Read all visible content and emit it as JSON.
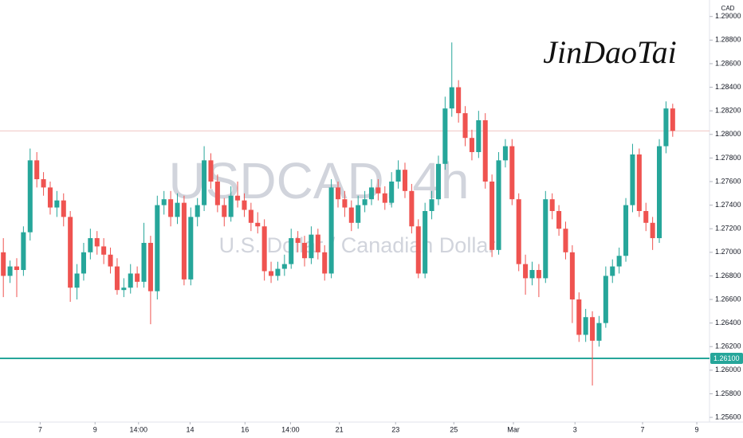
{
  "chart_data": {
    "type": "candlestick",
    "watermark": "USDCAD, 4h",
    "watermark_subtitle": "U.S. Dollar / Canadian Dollar",
    "signature": "JinDaoTai",
    "currency": "CAD",
    "up_color": "#26a69a",
    "down_color": "#ef5350",
    "grid": false,
    "xlim": [
      -0.5,
      105.5
    ],
    "ylim": [
      1.2556,
      1.2914
    ],
    "yticks": [
      {
        "value": 1.256,
        "label": "1.25600"
      },
      {
        "value": 1.258,
        "label": "1.25800"
      },
      {
        "value": 1.26,
        "label": "1.26000"
      },
      {
        "value": 1.262,
        "label": "1.26200"
      },
      {
        "value": 1.264,
        "label": "1.26400"
      },
      {
        "value": 1.266,
        "label": "1.26600"
      },
      {
        "value": 1.268,
        "label": "1.26800"
      },
      {
        "value": 1.27,
        "label": "1.27000"
      },
      {
        "value": 1.272,
        "label": "1.27200"
      },
      {
        "value": 1.274,
        "label": "1.27400"
      },
      {
        "value": 1.276,
        "label": "1.27600"
      },
      {
        "value": 1.278,
        "label": "1.27800"
      },
      {
        "value": 1.28,
        "label": "1.28000"
      },
      {
        "value": 1.282,
        "label": "1.28200"
      },
      {
        "value": 1.284,
        "label": "1.28400"
      },
      {
        "value": 1.286,
        "label": "1.28600"
      },
      {
        "value": 1.288,
        "label": "1.28800"
      },
      {
        "value": 1.29,
        "label": "1.29000"
      }
    ],
    "xticks": [
      {
        "value": 5.5,
        "label": "7"
      },
      {
        "value": 13.7,
        "label": "9"
      },
      {
        "value": 20.2,
        "label": "14:00"
      },
      {
        "value": 27.9,
        "label": "14"
      },
      {
        "value": 36.1,
        "label": "16"
      },
      {
        "value": 42.9,
        "label": "14:00"
      },
      {
        "value": 50.2,
        "label": "21"
      },
      {
        "value": 58.6,
        "label": "23"
      },
      {
        "value": 67.3,
        "label": "25"
      },
      {
        "value": 76.2,
        "label": "Mar"
      },
      {
        "value": 85.4,
        "label": "3"
      },
      {
        "value": 95.5,
        "label": "7"
      },
      {
        "value": 103.6,
        "label": "9"
      }
    ],
    "level": {
      "value": 1.261,
      "label": "1.26100",
      "color": "#26a69a"
    },
    "candles": [
      [
        1.27,
        1.2712,
        1.2662,
        1.268
      ],
      [
        1.268,
        1.2693,
        1.2674,
        1.2688
      ],
      [
        1.2688,
        1.2695,
        1.2662,
        1.2685
      ],
      [
        1.2685,
        1.2722,
        1.268,
        1.2717
      ],
      [
        1.2717,
        1.2788,
        1.271,
        1.2778
      ],
      [
        1.2778,
        1.2785,
        1.2755,
        1.2762
      ],
      [
        1.2762,
        1.2768,
        1.2748,
        1.2755
      ],
      [
        1.2755,
        1.276,
        1.2732,
        1.2738
      ],
      [
        1.2738,
        1.2752,
        1.273,
        1.2744
      ],
      [
        1.2744,
        1.275,
        1.2722,
        1.273
      ],
      [
        1.273,
        1.2735,
        1.2658,
        1.267
      ],
      [
        1.267,
        1.269,
        1.266,
        1.2682
      ],
      [
        1.2682,
        1.2708,
        1.2676,
        1.27
      ],
      [
        1.27,
        1.272,
        1.2694,
        1.2712
      ],
      [
        1.2712,
        1.2718,
        1.2698,
        1.2705
      ],
      [
        1.2705,
        1.2712,
        1.269,
        1.2698
      ],
      [
        1.2698,
        1.2704,
        1.2682,
        1.2688
      ],
      [
        1.2688,
        1.2695,
        1.2664,
        1.2668
      ],
      [
        1.2668,
        1.2678,
        1.2662,
        1.267
      ],
      [
        1.267,
        1.269,
        1.2665,
        1.2682
      ],
      [
        1.2682,
        1.2688,
        1.267,
        1.2675
      ],
      [
        1.2675,
        1.2725,
        1.267,
        1.2708
      ],
      [
        1.2708,
        1.2714,
        1.2639,
        1.2667
      ],
      [
        1.2667,
        1.2748,
        1.266,
        1.274
      ],
      [
        1.274,
        1.2752,
        1.2732,
        1.2745
      ],
      [
        1.2745,
        1.2752,
        1.2722,
        1.273
      ],
      [
        1.273,
        1.275,
        1.2724,
        1.2742
      ],
      [
        1.2742,
        1.2748,
        1.2672,
        1.2677
      ],
      [
        1.2677,
        1.2738,
        1.2672,
        1.273
      ],
      [
        1.273,
        1.2746,
        1.2722,
        1.274
      ],
      [
        1.274,
        1.279,
        1.2735,
        1.2778
      ],
      [
        1.2778,
        1.2784,
        1.2754,
        1.276
      ],
      [
        1.276,
        1.2766,
        1.2734,
        1.274
      ],
      [
        1.274,
        1.2746,
        1.2722,
        1.273
      ],
      [
        1.273,
        1.2756,
        1.2726,
        1.2748
      ],
      [
        1.2748,
        1.276,
        1.2738,
        1.2744
      ],
      [
        1.2744,
        1.275,
        1.273,
        1.2736
      ],
      [
        1.2736,
        1.2742,
        1.2718,
        1.2725
      ],
      [
        1.2725,
        1.2734,
        1.2716,
        1.2722
      ],
      [
        1.2722,
        1.2728,
        1.2676,
        1.2684
      ],
      [
        1.2684,
        1.2692,
        1.2674,
        1.268
      ],
      [
        1.268,
        1.2692,
        1.2676,
        1.2686
      ],
      [
        1.2686,
        1.2698,
        1.268,
        1.269
      ],
      [
        1.269,
        1.272,
        1.2686,
        1.2712
      ],
      [
        1.2712,
        1.2718,
        1.27,
        1.2708
      ],
      [
        1.2708,
        1.2714,
        1.2688,
        1.2695
      ],
      [
        1.2695,
        1.2722,
        1.269,
        1.2715
      ],
      [
        1.2715,
        1.272,
        1.2694,
        1.27
      ],
      [
        1.27,
        1.2706,
        1.2676,
        1.2682
      ],
      [
        1.2682,
        1.2762,
        1.2678,
        1.2755
      ],
      [
        1.2755,
        1.276,
        1.2738,
        1.2745
      ],
      [
        1.2745,
        1.2752,
        1.273,
        1.2738
      ],
      [
        1.2738,
        1.2744,
        1.2718,
        1.2725
      ],
      [
        1.2725,
        1.2748,
        1.272,
        1.274
      ],
      [
        1.274,
        1.2752,
        1.2734,
        1.2745
      ],
      [
        1.2745,
        1.2762,
        1.274,
        1.2755
      ],
      [
        1.2755,
        1.2762,
        1.2744,
        1.275
      ],
      [
        1.275,
        1.2756,
        1.2736,
        1.2742
      ],
      [
        1.2742,
        1.2768,
        1.2738,
        1.276
      ],
      [
        1.276,
        1.2778,
        1.2754,
        1.277
      ],
      [
        1.277,
        1.2776,
        1.2746,
        1.2752
      ],
      [
        1.2752,
        1.2758,
        1.2716,
        1.2722
      ],
      [
        1.2722,
        1.2728,
        1.2678,
        1.2682
      ],
      [
        1.2682,
        1.2742,
        1.2678,
        1.2735
      ],
      [
        1.2735,
        1.2752,
        1.2728,
        1.2745
      ],
      [
        1.2745,
        1.2782,
        1.274,
        1.2775
      ],
      [
        1.2775,
        1.2832,
        1.277,
        1.2822
      ],
      [
        1.2822,
        1.2878,
        1.2815,
        1.284
      ],
      [
        1.284,
        1.2846,
        1.281,
        1.2818
      ],
      [
        1.2818,
        1.2824,
        1.279,
        1.2797
      ],
      [
        1.2797,
        1.2804,
        1.2778,
        1.2785
      ],
      [
        1.2785,
        1.282,
        1.278,
        1.2812
      ],
      [
        1.2812,
        1.2818,
        1.2754,
        1.276
      ],
      [
        1.276,
        1.2766,
        1.2696,
        1.2702
      ],
      [
        1.2702,
        1.2785,
        1.2698,
        1.2778
      ],
      [
        1.2778,
        1.2796,
        1.2772,
        1.279
      ],
      [
        1.279,
        1.2796,
        1.274,
        1.2745
      ],
      [
        1.2745,
        1.275,
        1.2684,
        1.269
      ],
      [
        1.269,
        1.2698,
        1.2664,
        1.2678
      ],
      [
        1.2678,
        1.2692,
        1.2672,
        1.2685
      ],
      [
        1.2685,
        1.269,
        1.2662,
        1.2678
      ],
      [
        1.2678,
        1.2752,
        1.2674,
        1.2745
      ],
      [
        1.2745,
        1.275,
        1.2728,
        1.2735
      ],
      [
        1.2735,
        1.274,
        1.2714,
        1.272
      ],
      [
        1.272,
        1.2726,
        1.2694,
        1.27
      ],
      [
        1.27,
        1.2706,
        1.264,
        1.266
      ],
      [
        1.266,
        1.2666,
        1.2624,
        1.263
      ],
      [
        1.263,
        1.2652,
        1.2624,
        1.2645
      ],
      [
        1.2645,
        1.265,
        1.2587,
        1.2625
      ],
      [
        1.2625,
        1.2646,
        1.262,
        1.264
      ],
      [
        1.264,
        1.2688,
        1.2636,
        1.268
      ],
      [
        1.268,
        1.2694,
        1.2674,
        1.2688
      ],
      [
        1.2688,
        1.2704,
        1.2682,
        1.2697
      ],
      [
        1.2697,
        1.2746,
        1.2692,
        1.274
      ],
      [
        1.274,
        1.2792,
        1.2734,
        1.2783
      ],
      [
        1.2783,
        1.2788,
        1.273,
        1.2735
      ],
      [
        1.2735,
        1.2742,
        1.2718,
        1.2725
      ],
      [
        1.2725,
        1.273,
        1.2702,
        1.2712
      ],
      [
        1.2712,
        1.2796,
        1.2708,
        1.279
      ],
      [
        1.279,
        1.2828,
        1.2784,
        1.2822
      ],
      [
        1.2822,
        1.2826,
        1.2798,
        1.2803
      ]
    ]
  }
}
